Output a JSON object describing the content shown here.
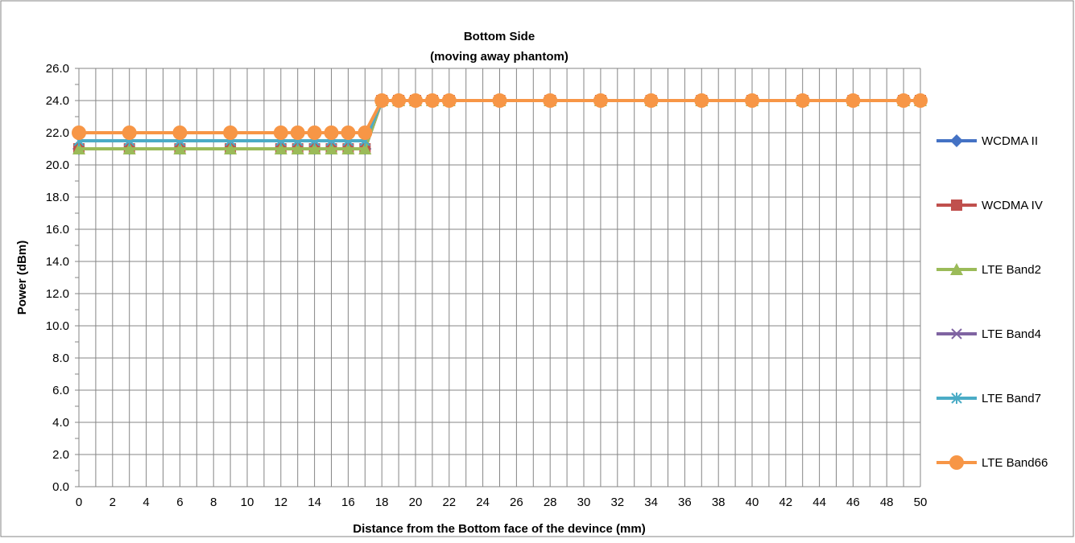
{
  "chart_data": {
    "type": "line",
    "title": "Bottom Side",
    "subtitle": "(moving away phantom)",
    "xlabel": "Distance from the Bottom face of the devince (mm)",
    "ylabel": "Power (dBm)",
    "xlim": [
      0,
      50
    ],
    "ylim": [
      0,
      26
    ],
    "x_ticks": [
      0,
      2,
      4,
      6,
      8,
      10,
      12,
      14,
      16,
      18,
      20,
      22,
      24,
      26,
      28,
      30,
      32,
      34,
      36,
      38,
      40,
      42,
      44,
      46,
      48,
      50
    ],
    "y_ticks": [
      "0.0",
      "2.0",
      "4.0",
      "6.0",
      "8.0",
      "10.0",
      "12.0",
      "14.0",
      "16.0",
      "18.0",
      "20.0",
      "22.0",
      "24.0",
      "26.0"
    ],
    "grid": true,
    "legend_position": "right",
    "x": [
      0,
      3,
      6,
      9,
      12,
      13,
      14,
      15,
      16,
      17,
      18,
      19,
      20,
      21,
      22,
      25,
      28,
      31,
      34,
      37,
      40,
      43,
      46,
      49,
      50
    ],
    "series": [
      {
        "name": "WCDMA II",
        "color": "#4472C4",
        "marker": "diamond",
        "values": [
          21,
          21,
          21,
          21,
          21,
          21,
          21,
          21,
          21,
          21,
          24,
          24,
          24,
          24,
          24,
          24,
          24,
          24,
          24,
          24,
          24,
          24,
          24,
          24,
          24
        ]
      },
      {
        "name": "WCDMA IV",
        "color": "#C0504D",
        "marker": "square",
        "values": [
          21,
          21,
          21,
          21,
          21,
          21,
          21,
          21,
          21,
          21,
          24,
          24,
          24,
          24,
          24,
          24,
          24,
          24,
          24,
          24,
          24,
          24,
          24,
          24,
          24
        ]
      },
      {
        "name": "LTE Band2",
        "color": "#9BBB59",
        "marker": "triangle",
        "values": [
          21,
          21,
          21,
          21,
          21,
          21,
          21,
          21,
          21,
          21,
          24,
          24,
          24,
          24,
          24,
          24,
          24,
          24,
          24,
          24,
          24,
          24,
          24,
          24,
          24
        ]
      },
      {
        "name": "LTE Band4",
        "color": "#8064A2",
        "marker": "x",
        "values": [
          21.5,
          21.5,
          21.5,
          21.5,
          21.5,
          21.5,
          21.5,
          21.5,
          21.5,
          21.5,
          24,
          24,
          24,
          24,
          24,
          24,
          24,
          24,
          24,
          24,
          24,
          24,
          24,
          24,
          24
        ]
      },
      {
        "name": "LTE Band7",
        "color": "#4BACC6",
        "marker": "star",
        "values": [
          21.5,
          21.5,
          21.5,
          21.5,
          21.5,
          21.5,
          21.5,
          21.5,
          21.5,
          21.5,
          24,
          24,
          24,
          24,
          24,
          24,
          24,
          24,
          24,
          24,
          24,
          24,
          24,
          24,
          24
        ]
      },
      {
        "name": "LTE Band66",
        "color": "#F79646",
        "marker": "circle",
        "values": [
          22,
          22,
          22,
          22,
          22,
          22,
          22,
          22,
          22,
          22,
          24,
          24,
          24,
          24,
          24,
          24,
          24,
          24,
          24,
          24,
          24,
          24,
          24,
          24,
          24
        ]
      }
    ]
  }
}
